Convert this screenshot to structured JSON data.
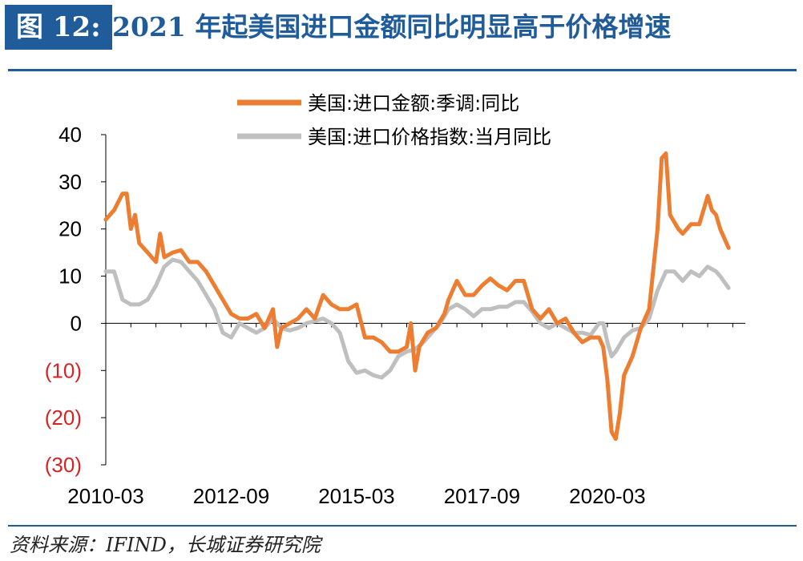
{
  "header": {
    "figure_label": "图 12:",
    "title": "2021 年起美国进口金额同比明显高于价格增速"
  },
  "footer": {
    "source": "资料来源：IFIND，长城证券研究院"
  },
  "colors": {
    "accent": "#1f5c99",
    "series_import_value": "#ed7d31",
    "series_import_price": "#bfbfbf",
    "negative_tick": "#d62424"
  },
  "chart_data": {
    "type": "line",
    "title": "",
    "xlabel": "",
    "ylabel": "",
    "ylim": [
      -30,
      40
    ],
    "xlim": [
      "2010-03",
      "2022-12"
    ],
    "yticks": [
      40,
      30,
      20,
      10,
      0,
      -10,
      -20,
      -30
    ],
    "ytick_labels": [
      "40",
      "30",
      "20",
      "10",
      "0",
      "(10)",
      "(20)",
      "(30)"
    ],
    "xtick_labels": [
      "2010-03",
      "2012-09",
      "2015-03",
      "2017-09",
      "2020-03"
    ],
    "legend_position": "top",
    "grid": false,
    "series": [
      {
        "name": "美国:进口金额:季调:同比",
        "color": "#ed7d31",
        "points": [
          [
            "2010-03",
            22
          ],
          [
            "2010-05",
            24
          ],
          [
            "2010-07",
            27.5
          ],
          [
            "2010-08",
            27.5
          ],
          [
            "2010-09",
            20
          ],
          [
            "2010-10",
            23
          ],
          [
            "2010-11",
            17
          ],
          [
            "2011-01",
            15
          ],
          [
            "2011-03",
            13
          ],
          [
            "2011-04",
            19
          ],
          [
            "2011-05",
            14
          ],
          [
            "2011-07",
            15
          ],
          [
            "2011-09",
            15.5
          ],
          [
            "2011-11",
            13
          ],
          [
            "2012-01",
            13
          ],
          [
            "2012-03",
            11
          ],
          [
            "2012-05",
            8
          ],
          [
            "2012-07",
            5
          ],
          [
            "2012-09",
            2
          ],
          [
            "2012-11",
            1
          ],
          [
            "2013-01",
            1
          ],
          [
            "2013-03",
            2
          ],
          [
            "2013-05",
            -1
          ],
          [
            "2013-07",
            3
          ],
          [
            "2013-08",
            -5
          ],
          [
            "2013-09",
            -1
          ],
          [
            "2013-11",
            0
          ],
          [
            "2014-01",
            1
          ],
          [
            "2014-03",
            3
          ],
          [
            "2014-05",
            1
          ],
          [
            "2014-07",
            6
          ],
          [
            "2014-09",
            4
          ],
          [
            "2014-11",
            3
          ],
          [
            "2015-01",
            3
          ],
          [
            "2015-03",
            4
          ],
          [
            "2015-05",
            -3
          ],
          [
            "2015-07",
            -3
          ],
          [
            "2015-09",
            -4
          ],
          [
            "2015-11",
            -6
          ],
          [
            "2016-01",
            -6
          ],
          [
            "2016-03",
            -5
          ],
          [
            "2016-04",
            0
          ],
          [
            "2016-05",
            -10
          ],
          [
            "2016-06",
            -5
          ],
          [
            "2016-08",
            -2
          ],
          [
            "2016-10",
            -1
          ],
          [
            "2016-12",
            2
          ],
          [
            "2017-01",
            5
          ],
          [
            "2017-03",
            9
          ],
          [
            "2017-05",
            6
          ],
          [
            "2017-07",
            6
          ],
          [
            "2017-09",
            8
          ],
          [
            "2017-11",
            9.5
          ],
          [
            "2018-01",
            8
          ],
          [
            "2018-03",
            7
          ],
          [
            "2018-05",
            9
          ],
          [
            "2018-07",
            9
          ],
          [
            "2018-09",
            3
          ],
          [
            "2018-11",
            1
          ],
          [
            "2019-01",
            3
          ],
          [
            "2019-03",
            0
          ],
          [
            "2019-05",
            1
          ],
          [
            "2019-07",
            -2
          ],
          [
            "2019-09",
            -4
          ],
          [
            "2019-11",
            -3
          ],
          [
            "2020-01",
            -3
          ],
          [
            "2020-02",
            -5
          ],
          [
            "2020-03",
            -12
          ],
          [
            "2020-04",
            -23
          ],
          [
            "2020-05",
            -24.5
          ],
          [
            "2020-06",
            -19
          ],
          [
            "2020-07",
            -11
          ],
          [
            "2020-09",
            -7
          ],
          [
            "2020-11",
            -1
          ],
          [
            "2021-01",
            3
          ],
          [
            "2021-03",
            20
          ],
          [
            "2021-04",
            35
          ],
          [
            "2021-05",
            36
          ],
          [
            "2021-06",
            23
          ],
          [
            "2021-08",
            20
          ],
          [
            "2021-09",
            19
          ],
          [
            "2021-11",
            21
          ],
          [
            "2022-01",
            21
          ],
          [
            "2022-03",
            27
          ],
          [
            "2022-04",
            24
          ],
          [
            "2022-05",
            23
          ],
          [
            "2022-06",
            20
          ],
          [
            "2022-08",
            16
          ]
        ]
      },
      {
        "name": "美国:进口价格指数:当月同比",
        "color": "#bfbfbf",
        "points": [
          [
            "2010-03",
            11
          ],
          [
            "2010-05",
            11
          ],
          [
            "2010-07",
            5
          ],
          [
            "2010-09",
            4
          ],
          [
            "2010-11",
            4
          ],
          [
            "2011-01",
            5
          ],
          [
            "2011-03",
            8
          ],
          [
            "2011-05",
            12
          ],
          [
            "2011-07",
            13.5
          ],
          [
            "2011-09",
            13
          ],
          [
            "2011-11",
            11
          ],
          [
            "2012-01",
            9
          ],
          [
            "2012-03",
            6
          ],
          [
            "2012-05",
            3
          ],
          [
            "2012-07",
            -2
          ],
          [
            "2012-09",
            -3
          ],
          [
            "2012-11",
            0
          ],
          [
            "2013-01",
            -1
          ],
          [
            "2013-03",
            -2
          ],
          [
            "2013-05",
            -1
          ],
          [
            "2013-07",
            1
          ],
          [
            "2013-09",
            -1
          ],
          [
            "2013-11",
            -1.5
          ],
          [
            "2014-01",
            -1
          ],
          [
            "2014-03",
            0
          ],
          [
            "2014-05",
            0.5
          ],
          [
            "2014-07",
            1
          ],
          [
            "2014-09",
            0
          ],
          [
            "2014-11",
            -2
          ],
          [
            "2015-01",
            -8
          ],
          [
            "2015-03",
            -10.5
          ],
          [
            "2015-05",
            -10
          ],
          [
            "2015-07",
            -11
          ],
          [
            "2015-09",
            -11.5
          ],
          [
            "2015-11",
            -10
          ],
          [
            "2016-01",
            -7
          ],
          [
            "2016-03",
            -6
          ],
          [
            "2016-05",
            -5.5
          ],
          [
            "2016-07",
            -4
          ],
          [
            "2016-09",
            -2
          ],
          [
            "2016-11",
            0
          ],
          [
            "2017-01",
            3
          ],
          [
            "2017-03",
            4
          ],
          [
            "2017-05",
            3
          ],
          [
            "2017-07",
            1.5
          ],
          [
            "2017-09",
            3
          ],
          [
            "2017-11",
            3
          ],
          [
            "2018-01",
            3.5
          ],
          [
            "2018-03",
            3.5
          ],
          [
            "2018-05",
            4.5
          ],
          [
            "2018-07",
            4.5
          ],
          [
            "2018-09",
            2.5
          ],
          [
            "2018-11",
            0
          ],
          [
            "2019-01",
            -1
          ],
          [
            "2019-03",
            0
          ],
          [
            "2019-05",
            -1
          ],
          [
            "2019-07",
            -2
          ],
          [
            "2019-09",
            -2
          ],
          [
            "2019-11",
            -2.5
          ],
          [
            "2020-01",
            0
          ],
          [
            "2020-02",
            0
          ],
          [
            "2020-03",
            -4
          ],
          [
            "2020-04",
            -7
          ],
          [
            "2020-05",
            -6
          ],
          [
            "2020-07",
            -3
          ],
          [
            "2020-09",
            -1.5
          ],
          [
            "2020-11",
            -1
          ],
          [
            "2021-01",
            1
          ],
          [
            "2021-03",
            7
          ],
          [
            "2021-05",
            11
          ],
          [
            "2021-07",
            11
          ],
          [
            "2021-09",
            9
          ],
          [
            "2021-11",
            11
          ],
          [
            "2022-01",
            10
          ],
          [
            "2022-03",
            12
          ],
          [
            "2022-05",
            11
          ],
          [
            "2022-06",
            10
          ],
          [
            "2022-08",
            7.5
          ]
        ]
      }
    ]
  }
}
